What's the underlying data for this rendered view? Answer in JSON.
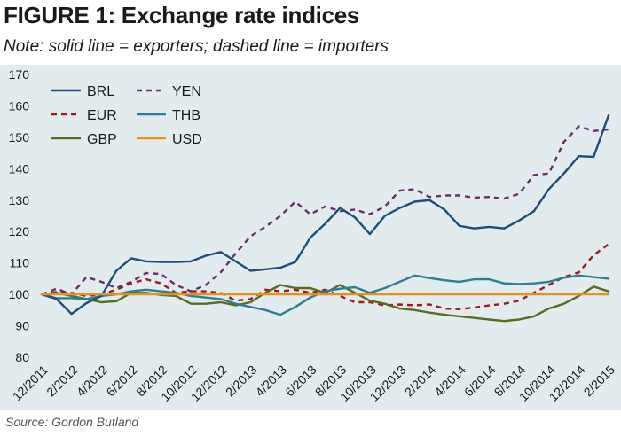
{
  "figure": {
    "title": "FIGURE 1: Exchange rate indices",
    "note": "Note: solid line = exporters; dashed line = importers",
    "source": "Source: Gordon Butland"
  },
  "chart_data": {
    "type": "line",
    "title": "FIGURE 1: Exchange rate indices",
    "subtitle": "Note: solid line = exporters; dashed line = importers",
    "xlabel": "",
    "ylabel": "",
    "ylim": [
      80,
      170
    ],
    "yticks": [
      80,
      90,
      100,
      110,
      120,
      130,
      140,
      150,
      160,
      170
    ],
    "grid": false,
    "legend_position": "top-left",
    "x_tick_labels": [
      "12/2011",
      "2/2012",
      "4/2012",
      "6/2012",
      "8/2012",
      "10/2012",
      "12/2012",
      "2/2013",
      "4/2013",
      "6/2013",
      "8/2013",
      "10/2013",
      "12/2013",
      "2/2014",
      "4/2014",
      "6/2014",
      "8/2014",
      "10/2014",
      "12/2014",
      "2/2015"
    ],
    "x": [
      "12/2011",
      "1/2012",
      "2/2012",
      "3/2012",
      "4/2012",
      "5/2012",
      "6/2012",
      "7/2012",
      "8/2012",
      "9/2012",
      "10/2012",
      "11/2012",
      "12/2012",
      "1/2013",
      "2/2013",
      "3/2013",
      "4/2013",
      "5/2013",
      "6/2013",
      "7/2013",
      "8/2013",
      "9/2013",
      "10/2013",
      "11/2013",
      "12/2013",
      "1/2014",
      "2/2014",
      "3/2014",
      "4/2014",
      "5/2014",
      "6/2014",
      "7/2014",
      "8/2014",
      "9/2014",
      "10/2014",
      "11/2014",
      "12/2014",
      "1/2015",
      "2/2015"
    ],
    "series": [
      {
        "name": "BRL",
        "color": "#1f4e79",
        "dashed": false,
        "values": [
          100,
          98.5,
          93.8,
          97.2,
          99.5,
          107.5,
          111.5,
          110.5,
          110.3,
          110.3,
          110.5,
          112.3,
          113.5,
          110.5,
          107.5,
          108.0,
          108.5,
          110.3,
          118.0,
          122.5,
          127.5,
          124.5,
          119.2,
          125.0,
          127.5,
          129.5,
          130.0,
          127.0,
          121.8,
          121.0,
          121.5,
          121.0,
          123.5,
          126.5,
          133.5,
          138.5,
          144.0,
          143.8,
          157.0
        ]
      },
      {
        "name": "YEN",
        "color": "#6b2d6b",
        "dashed": true,
        "values": [
          100,
          101.8,
          100.0,
          105.5,
          104.0,
          102.0,
          104.0,
          106.8,
          106.5,
          103.0,
          101.0,
          103.0,
          107.0,
          113.0,
          118.5,
          121.5,
          125.0,
          129.5,
          125.5,
          128.0,
          126.5,
          127.0,
          125.5,
          128.0,
          133.0,
          133.5,
          131.0,
          131.5,
          131.5,
          130.8,
          131.0,
          130.5,
          132.0,
          138.0,
          138.5,
          148.5,
          153.5,
          152.0,
          152.5
        ]
      },
      {
        "name": "EUR",
        "color": "#9b1b1b",
        "dashed": true,
        "values": [
          100,
          100.8,
          100.5,
          99.5,
          100.0,
          101.5,
          103.5,
          104.8,
          103.5,
          100.5,
          101.0,
          101.0,
          100.5,
          98.0,
          98.5,
          101.5,
          101.0,
          101.5,
          100.5,
          101.5,
          99.5,
          97.5,
          97.5,
          96.5,
          96.8,
          96.5,
          96.8,
          95.5,
          95.3,
          95.8,
          96.5,
          97.0,
          98.0,
          100.5,
          103.0,
          105.5,
          107.0,
          112.5,
          116.0
        ]
      },
      {
        "name": "THB",
        "color": "#2e7d94",
        "dashed": false,
        "values": [
          100,
          98.8,
          98.8,
          98.5,
          99.5,
          100.0,
          101.0,
          101.5,
          101.0,
          100.5,
          99.5,
          99.0,
          98.5,
          97.0,
          96.0,
          95.0,
          93.5,
          96.0,
          99.0,
          101.0,
          101.8,
          102.3,
          100.5,
          102.0,
          104.0,
          106.0,
          105.2,
          104.5,
          104.0,
          104.8,
          104.8,
          103.5,
          103.3,
          103.5,
          104.0,
          105.3,
          106.0,
          105.5,
          105.0
        ]
      },
      {
        "name": "GBP",
        "color": "#5a6b23",
        "dashed": false,
        "values": [
          100,
          100.5,
          99.5,
          98.5,
          97.5,
          97.8,
          100.5,
          100.5,
          99.8,
          99.5,
          97.0,
          97.0,
          97.5,
          96.5,
          97.5,
          100.5,
          103.0,
          102.0,
          102.0,
          100.5,
          103.0,
          100.5,
          98.0,
          97.0,
          95.5,
          95.0,
          94.2,
          93.5,
          93.0,
          92.5,
          92.0,
          91.5,
          92.0,
          93.0,
          95.5,
          97.0,
          99.5,
          102.5,
          101.0
        ]
      },
      {
        "name": "USD",
        "color": "#e8901c",
        "dashed": false,
        "values": [
          100,
          100,
          100,
          100,
          100,
          100,
          100,
          100,
          100,
          100,
          100,
          100,
          100,
          100,
          100,
          100,
          100,
          100,
          100,
          100,
          100,
          100,
          100,
          100,
          100,
          100,
          100,
          100,
          100,
          100,
          100,
          100,
          100,
          100,
          100,
          100,
          100,
          100,
          100
        ]
      }
    ],
    "legend_order": [
      "BRL",
      "YEN",
      "EUR",
      "THB",
      "GBP",
      "USD"
    ]
  }
}
